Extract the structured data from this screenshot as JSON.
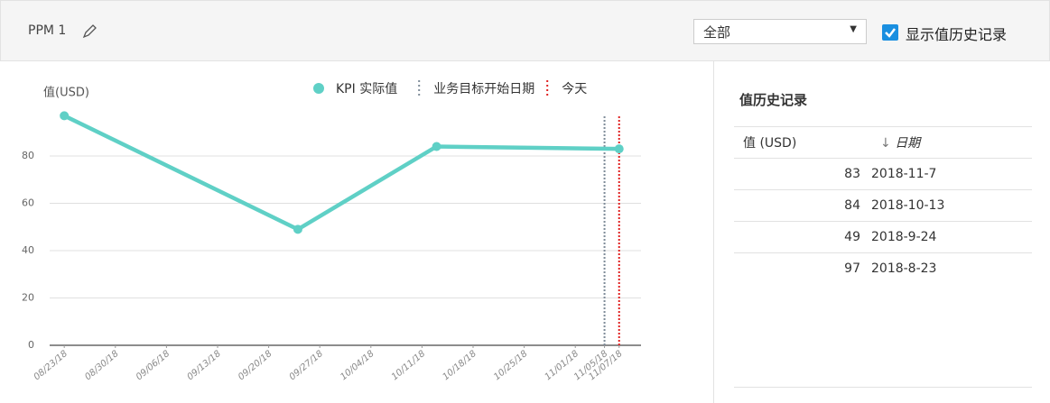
{
  "header": {
    "title": "PPM 1",
    "filter": "全部",
    "toggle": "显示值历史记录"
  },
  "chart_data": {
    "type": "line",
    "y_label": "值(USD)",
    "series": [
      {
        "name": "KPI 实际值",
        "color": "#5fd0c6",
        "x": [
          "2018-08-23",
          "2018-09-24",
          "2018-10-13",
          "2018-11-07"
        ],
        "values": [
          97,
          49,
          84,
          83
        ]
      }
    ],
    "markers": [
      {
        "name": "业务目标开始日期",
        "x": "2018-11-05",
        "color": "#7f8c99"
      },
      {
        "name": "今天",
        "x": "2018-11-07",
        "color": "#e02020"
      }
    ],
    "xlim": [
      "2018-08-21",
      "2018-11-10"
    ],
    "xticks": [
      {
        "value": "2018-08-23",
        "label": "08/23/18"
      },
      {
        "value": "2018-08-30",
        "label": "08/30/18"
      },
      {
        "value": "2018-09-06",
        "label": "09/06/18"
      },
      {
        "value": "2018-09-13",
        "label": "09/13/18"
      },
      {
        "value": "2018-09-20",
        "label": "09/20/18"
      },
      {
        "value": "2018-09-27",
        "label": "09/27/18"
      },
      {
        "value": "2018-10-04",
        "label": "10/04/18"
      },
      {
        "value": "2018-10-11",
        "label": "10/11/18"
      },
      {
        "value": "2018-10-18",
        "label": "10/18/18"
      },
      {
        "value": "2018-10-25",
        "label": "10/25/18"
      },
      {
        "value": "2018-11-01",
        "label": "11/01/18"
      },
      {
        "value": "2018-11-05",
        "label": "11/05/18"
      },
      {
        "value": "2018-11-07",
        "label": "11/07/18"
      }
    ],
    "ylim": [
      0,
      100
    ],
    "yticks": [
      0,
      20,
      40,
      60,
      80
    ],
    "grid": true
  },
  "history": {
    "title": "值历史记录",
    "columns": [
      "值 (USD)",
      "日期"
    ],
    "rows": [
      [
        83,
        "2018-11-7"
      ],
      [
        84,
        "2018-10-13"
      ],
      [
        49,
        "2018-9-24"
      ],
      [
        97,
        "2018-8-23"
      ]
    ]
  }
}
